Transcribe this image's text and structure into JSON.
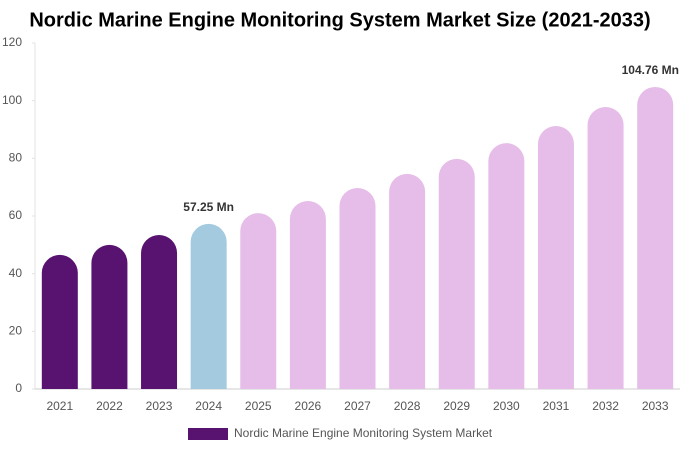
{
  "chart_data": {
    "type": "bar",
    "title": "Nordic Marine Engine Monitoring System Market Size (2021-2033)",
    "categories": [
      "2021",
      "2022",
      "2023",
      "2024",
      "2025",
      "2026",
      "2027",
      "2028",
      "2029",
      "2030",
      "2031",
      "2032",
      "2033"
    ],
    "series": [
      {
        "name": "Nordic Marine Engine Monitoring System Market",
        "color": "#581270",
        "colors": [
          "#581270",
          "#581270",
          "#581270",
          "#a3cade",
          "#e6bde8",
          "#e6bde8",
          "#e6bde8",
          "#e6bde8",
          "#e6bde8",
          "#e6bde8",
          "#e6bde8",
          "#e6bde8",
          "#e6bde8"
        ],
        "values": [
          46.5,
          50,
          53.4,
          57.25,
          61,
          65.2,
          69.7,
          74.6,
          79.8,
          85.3,
          91.2,
          97.8,
          104.76
        ],
        "value_labels": [
          null,
          null,
          null,
          "57.25 Mn",
          null,
          null,
          null,
          null,
          null,
          null,
          null,
          null,
          "104.76 Mn"
        ]
      }
    ],
    "ylim": [
      0,
      120
    ],
    "yticks": [
      0,
      20,
      40,
      60,
      80,
      100,
      120
    ],
    "grid": false,
    "legend": "bottom"
  }
}
